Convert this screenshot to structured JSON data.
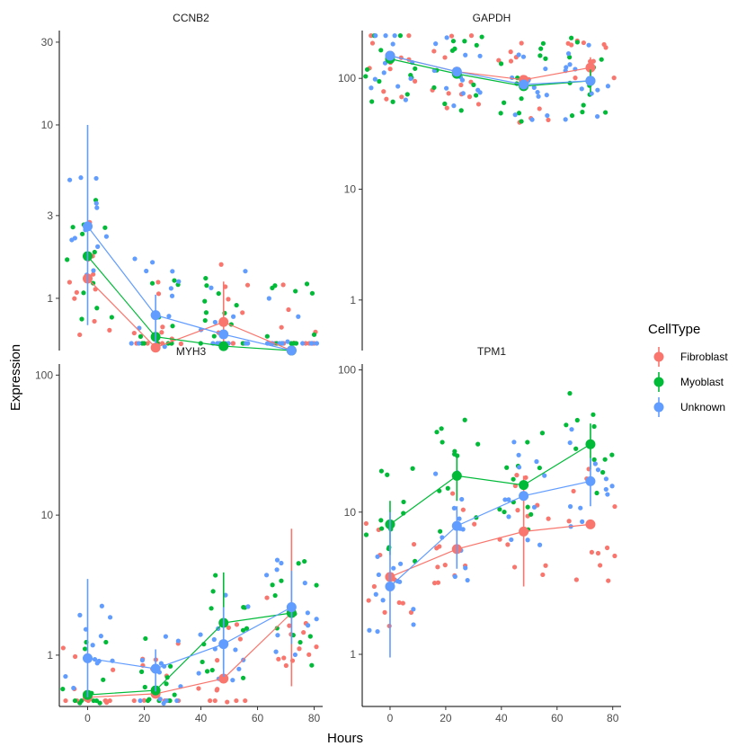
{
  "chart_data": {
    "type": "scatter",
    "xlabel": "Hours",
    "ylabel": "Expression",
    "y_scale": "log10",
    "x_ticks": [
      0,
      20,
      40,
      60,
      80
    ],
    "legend": {
      "title": "CellType",
      "placement": "right",
      "entries": [
        {
          "name": "Fibroblast",
          "color": "#F8766D"
        },
        {
          "name": "Myoblast",
          "color": "#00BA38"
        },
        {
          "name": "Unknown",
          "color": "#619CFF"
        }
      ]
    },
    "panels": [
      {
        "title": "CCNB2",
        "xlim": [
          -10,
          83
        ],
        "ylim": [
          0.5,
          35
        ],
        "y_ticks": [
          {
            "v": 1,
            "label": "1"
          },
          {
            "v": 3,
            "label": "3"
          },
          {
            "v": 10,
            "label": "10"
          },
          {
            "v": 30,
            "label": "30"
          }
        ],
        "summary": [
          {
            "series": "Fibroblast",
            "points": [
              {
                "x": 0,
                "y": 1.3,
                "lo": null,
                "hi": null
              },
              {
                "x": 24,
                "y": 0.52
              },
              {
                "x": 48,
                "y": 0.73,
                "lo": 0.5,
                "hi": 1.25
              },
              {
                "x": 72,
                "y": 0.5
              }
            ]
          },
          {
            "series": "Myoblast",
            "points": [
              {
                "x": 0,
                "y": 1.75
              },
              {
                "x": 24,
                "y": 0.6
              },
              {
                "x": 48,
                "y": 0.53
              },
              {
                "x": 72,
                "y": 0.5
              }
            ]
          },
          {
            "series": "Unknown",
            "points": [
              {
                "x": 0,
                "y": 2.6,
                "lo": 0.7,
                "hi": 10
              },
              {
                "x": 24,
                "y": 0.8,
                "lo": 0.55,
                "hi": 1.05
              },
              {
                "x": 48,
                "y": 0.62
              },
              {
                "x": 72,
                "y": 0.5
              }
            ]
          }
        ]
      },
      {
        "title": "GAPDH",
        "xlim": [
          -10,
          83
        ],
        "ylim": [
          0.35,
          270
        ],
        "y_ticks": [
          {
            "v": 1,
            "label": "1"
          },
          {
            "v": 10,
            "label": "10"
          },
          {
            "v": 100,
            "label": "100"
          }
        ],
        "summary": [
          {
            "series": "Fibroblast",
            "points": [
              {
                "x": 0,
                "y": 160
              },
              {
                "x": 24,
                "y": 115
              },
              {
                "x": 48,
                "y": 97
              },
              {
                "x": 72,
                "y": 125,
                "lo": 100,
                "hi": 155
              }
            ]
          },
          {
            "series": "Myoblast",
            "points": [
              {
                "x": 0,
                "y": 150
              },
              {
                "x": 24,
                "y": 110
              },
              {
                "x": 48,
                "y": 85
              },
              {
                "x": 72,
                "y": 95,
                "lo": 75,
                "hi": 120
              }
            ]
          },
          {
            "series": "Unknown",
            "points": [
              {
                "x": 0,
                "y": 160
              },
              {
                "x": 24,
                "y": 115
              },
              {
                "x": 48,
                "y": 88
              },
              {
                "x": 72,
                "y": 95
              }
            ]
          }
        ]
      },
      {
        "title": "MYH3",
        "xlim": [
          -10,
          83
        ],
        "ylim": [
          0.43,
          120
        ],
        "y_ticks": [
          {
            "v": 1,
            "label": "1"
          },
          {
            "v": 10,
            "label": "10"
          },
          {
            "v": 100,
            "label": "100"
          }
        ],
        "summary": [
          {
            "series": "Fibroblast",
            "points": [
              {
                "x": 0,
                "y": 0.5
              },
              {
                "x": 24,
                "y": 0.53
              },
              {
                "x": 48,
                "y": 0.68
              },
              {
                "x": 72,
                "y": 2.0,
                "lo": 0.6,
                "hi": 8
              }
            ]
          },
          {
            "series": "Myoblast",
            "points": [
              {
                "x": 0,
                "y": 0.52
              },
              {
                "x": 24,
                "y": 0.56
              },
              {
                "x": 48,
                "y": 1.7,
                "lo": 0.8,
                "hi": 3.9
              },
              {
                "x": 72,
                "y": 2.0
              }
            ]
          },
          {
            "series": "Unknown",
            "points": [
              {
                "x": 0,
                "y": 0.95,
                "lo": 0.5,
                "hi": 3.5
              },
              {
                "x": 24,
                "y": 0.8,
                "lo": 0.55,
                "hi": 1.1
              },
              {
                "x": 48,
                "y": 1.2,
                "lo": 0.7,
                "hi": 2.2
              },
              {
                "x": 72,
                "y": 2.2,
                "lo": 1.2,
                "hi": 4.0
              }
            ]
          }
        ]
      },
      {
        "title": "TPM1",
        "xlim": [
          -10,
          83
        ],
        "ylim": [
          0.43,
          110
        ],
        "y_ticks": [
          {
            "v": 1,
            "label": "1"
          },
          {
            "v": 10,
            "label": "10"
          },
          {
            "v": 100,
            "label": "100"
          }
        ],
        "summary": [
          {
            "series": "Fibroblast",
            "points": [
              {
                "x": 0,
                "y": 3.5
              },
              {
                "x": 24,
                "y": 5.5
              },
              {
                "x": 48,
                "y": 7.3,
                "lo": 3,
                "hi": 18
              },
              {
                "x": 72,
                "y": 8.2
              }
            ]
          },
          {
            "series": "Myoblast",
            "points": [
              {
                "x": 0,
                "y": 8.2,
                "lo": 5,
                "hi": 12
              },
              {
                "x": 24,
                "y": 18,
                "lo": 12,
                "hi": 25
              },
              {
                "x": 48,
                "y": 15.5
              },
              {
                "x": 72,
                "y": 30,
                "lo": 20,
                "hi": 42
              }
            ]
          },
          {
            "series": "Unknown",
            "points": [
              {
                "x": 0,
                "y": 3.0,
                "lo": 0.95,
                "hi": 10
              },
              {
                "x": 24,
                "y": 8,
                "lo": 4,
                "hi": 11
              },
              {
                "x": 48,
                "y": 13
              },
              {
                "x": 72,
                "y": 16.5,
                "lo": 11,
                "hi": 24
              }
            ]
          }
        ]
      }
    ]
  }
}
